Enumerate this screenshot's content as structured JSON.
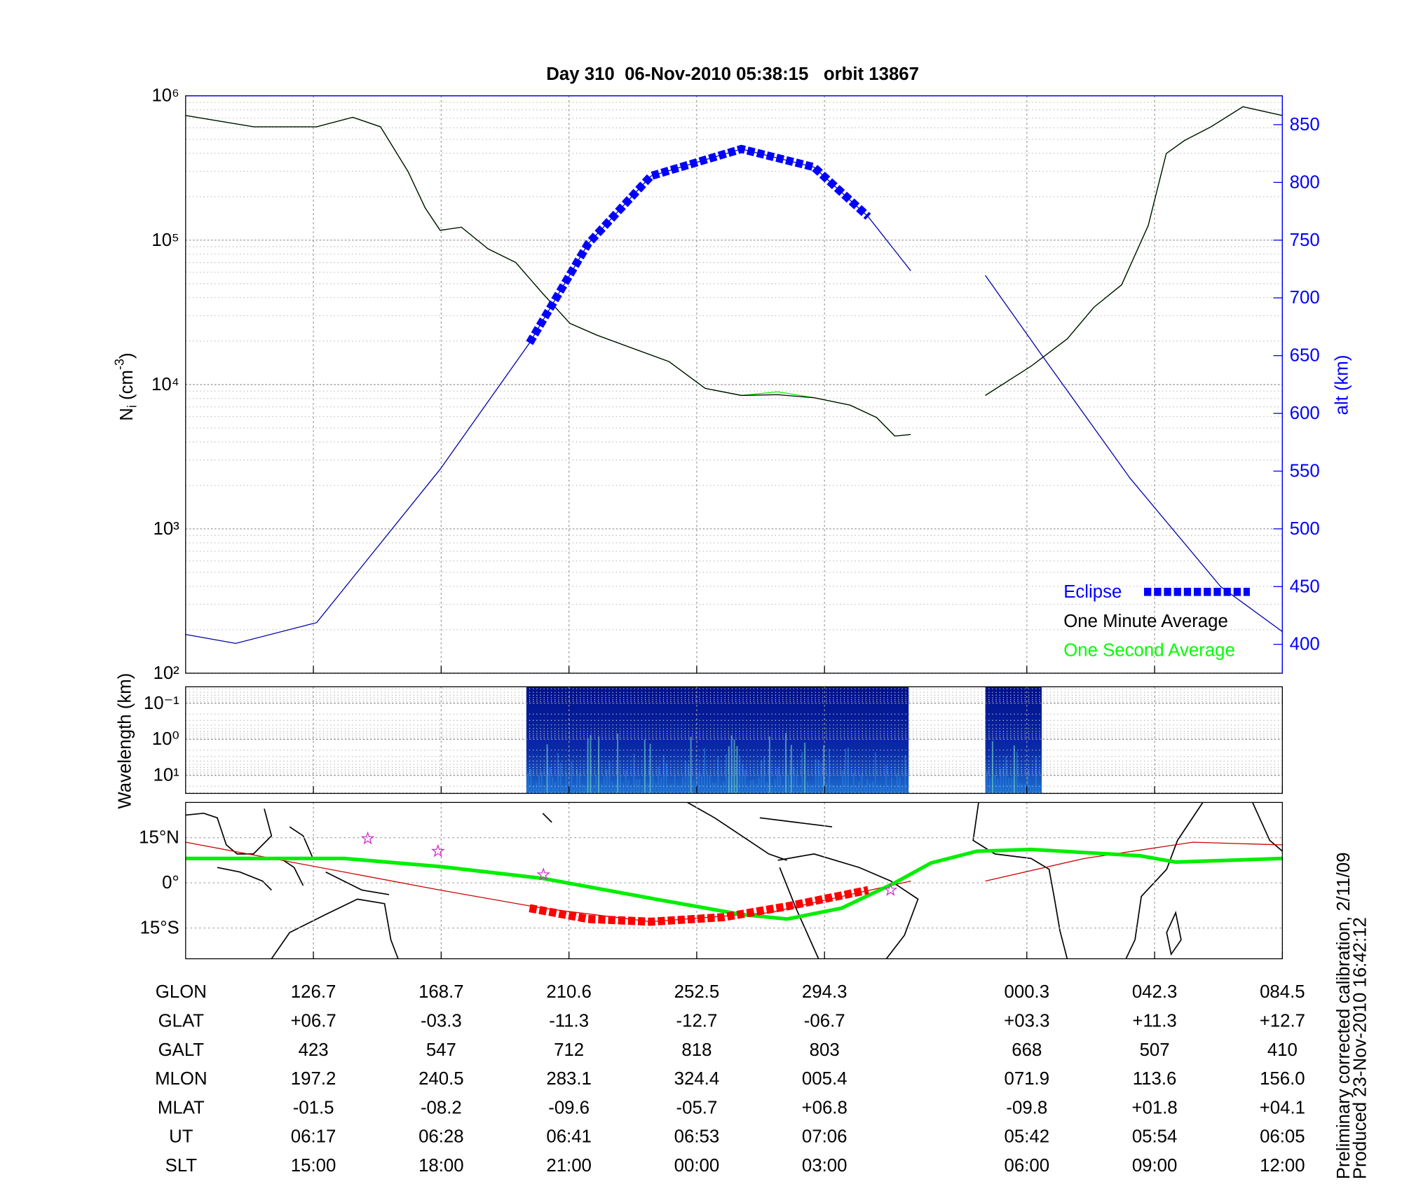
{
  "chart_data": [
    {
      "type": "line",
      "title": "Day 310  06-Nov-2010 05:38:15   orbit 13867",
      "ylabel_parts": [
        "N",
        "i",
        " (cm",
        "-3",
        ")"
      ],
      "y2label": "alt (km)",
      "xlim": [
        0,
        103
      ],
      "xticks": [
        12,
        24,
        36,
        48,
        60,
        79,
        91,
        103
      ],
      "ylim": [
        100,
        1000000
      ],
      "yscale": "log",
      "yticks": [
        {
          "value": 100,
          "label": "10²"
        },
        {
          "value": 1000,
          "label": "10³"
        },
        {
          "value": 10000,
          "label": "10⁴"
        },
        {
          "value": 100000,
          "label": "10⁵"
        },
        {
          "value": 1000000,
          "label": "10⁶"
        }
      ],
      "y2lim": [
        375,
        875
      ],
      "y2ticks": [
        400,
        450,
        500,
        550,
        600,
        650,
        700,
        750,
        800,
        850
      ],
      "grid": true,
      "legend": "lower right",
      "series": [
        {
          "name": "Eclipse",
          "color": "#0000ff",
          "axis": "y2",
          "style": "dashed-thick",
          "x": [
            32.3,
            37.8,
            43.7,
            52.2,
            59.0,
            64.1
          ],
          "values": [
            661,
            746.9,
            805.5,
            828.9,
            813.3,
            770.3
          ]
        },
        {
          "name": "One Minute Average",
          "color": "#000000",
          "x": [
            0,
            6.4,
            12.3,
            15.7,
            18.3,
            20.9,
            22.5,
            23.9,
            25.9,
            28.4,
            31.0,
            33.5,
            36.1,
            38.6,
            42.0,
            45.4,
            48.8,
            52.2,
            55.6,
            59.0,
            62.4,
            64.9,
            66.6,
            68.1,
            null,
            75.1,
            79.4,
            82.8,
            85.3,
            87.9,
            90.4,
            92.1,
            93.8,
            96.3,
            99.3,
            103
          ],
          "values": [
            730000,
            610000,
            610000,
            710000,
            610000,
            298000,
            167000,
            117000,
            123000,
            87000,
            70000,
            43000,
            26500,
            22000,
            17800,
            14400,
            9400,
            8400,
            8500,
            8100,
            7200,
            5900,
            4400,
            4500,
            null,
            8400,
            13400,
            20700,
            34300,
            49000,
            126000,
            398000,
            490000,
            610000,
            840000,
            730000
          ]
        },
        {
          "name": "One Second Average",
          "color": "#00ff00",
          "x": [
            0,
            6.4,
            12.3,
            15.7,
            18.3,
            20.9,
            22.5,
            23.9,
            25.9,
            28.4,
            31.0,
            33.5,
            36.1,
            38.6,
            42.0,
            45.4,
            48.8,
            52.2,
            55.6,
            59.0,
            62.4,
            64.9,
            66.6,
            68.1,
            null,
            75.1,
            79.4,
            82.8,
            85.3,
            87.9,
            90.4,
            92.1,
            93.8,
            96.3,
            99.3,
            103
          ],
          "values": [
            730000,
            610000,
            610000,
            710000,
            610000,
            298000,
            167000,
            117000,
            123000,
            87000,
            70000,
            43000,
            26500,
            22000,
            17800,
            14400,
            9400,
            8400,
            8900,
            8100,
            7200,
            5900,
            4400,
            4500,
            null,
            8400,
            13400,
            20700,
            34300,
            49000,
            126000,
            398000,
            490000,
            610000,
            840000,
            730000
          ]
        },
        {
          "color": "#0000aa",
          "axis": "y2",
          "x": [
            0,
            4.7,
            12.3,
            23.9,
            32.3,
            37.8,
            43.7,
            52.2,
            59.0,
            64.1,
            68.1,
            null,
            75.1,
            80.2,
            88.7,
            97.2,
            103
          ],
          "values": [
            408.6,
            400.8,
            418.8,
            551.6,
            661,
            746.9,
            805.5,
            828.9,
            813.3,
            770.3,
            723.4,
            null,
            719.5,
            653,
            543.8,
            450,
            411
          ]
        }
      ]
    },
    {
      "type": "heatmap",
      "ylabel": "Wavelength (km)",
      "xlim": [
        0,
        103
      ],
      "xticks": [
        12,
        24,
        36,
        48,
        60,
        79,
        91,
        103
      ],
      "ylim": [
        0.035,
        31.6
      ],
      "yscale": "log",
      "y_reversed": true,
      "yticks": [
        {
          "value": 0.1,
          "label": "10⁻¹"
        },
        {
          "value": 1,
          "label": "10⁰"
        },
        {
          "value": 10,
          "label": "10¹"
        }
      ],
      "blocks": [
        [
          32.0,
          67.9
        ],
        [
          75.1,
          80.4
        ]
      ]
    },
    {
      "type": "line",
      "xlim": [
        0,
        103
      ],
      "xticks": [
        12,
        24,
        36,
        48,
        60,
        79,
        91,
        103
      ],
      "ylim": [
        -25.2,
        26.7
      ],
      "yticks": [
        {
          "value": 15,
          "label": "15°N"
        },
        {
          "value": 0,
          "label": "0°"
        },
        {
          "value": -15,
          "label": "15°S"
        }
      ],
      "series": [
        {
          "color": "#cc0000",
          "x": [
            0,
            23.9,
            33.5,
            43.7,
            54.8,
            68.1,
            null,
            75.1,
            84.4,
            94.6,
            103
          ],
          "values": [
            13.5,
            -2.4,
            -8.4,
            -12.9,
            -9.9,
            0.6,
            null,
            0.6,
            8.1,
            13.5,
            12.6
          ]
        },
        {
          "color": "#00ee00",
          "style": "thick",
          "x": [
            0,
            14.9,
            23.9,
            33.5,
            44.6,
            52.2,
            56.5,
            61.6,
            66.6,
            70.0,
            74.3,
            79.4,
            89.6,
            93.0,
            103
          ],
          "values": [
            8.1,
            8.1,
            5.4,
            1.5,
            -5.7,
            -10.5,
            -12,
            -8.4,
            0,
            6.6,
            10.5,
            11.1,
            9,
            6.9,
            8.1
          ]
        },
        {
          "color": "#ff0000",
          "style": "dashed-thick",
          "x": [
            32.3,
            37.8,
            43.7,
            50.5,
            56.5,
            64.1
          ],
          "values": [
            -8.4,
            -12,
            -12.9,
            -11.4,
            -7.8,
            -2.4
          ]
        }
      ],
      "stars": {
        "color": "#cc33cc",
        "x": [
          17.1,
          23.7,
          33.6,
          66.2
        ],
        "values": [
          14.7,
          10.5,
          2.7,
          -2.4
        ]
      }
    }
  ],
  "table": {
    "row_labels": [
      "GLON",
      "GLAT",
      "GALT",
      "MLON",
      "MLAT",
      "UT",
      "SLT"
    ],
    "rows": [
      [
        "126.7",
        "168.7",
        "210.6",
        "252.5",
        "294.3",
        "000.3",
        "042.3",
        "084.5"
      ],
      [
        "+06.7",
        "-03.3",
        "-11.3",
        "-12.7",
        "-06.7",
        "+03.3",
        "+11.3",
        "+12.7"
      ],
      [
        "423",
        "547",
        "712",
        "818",
        "803",
        "668",
        "507",
        "410"
      ],
      [
        "197.2",
        "240.5",
        "283.1",
        "324.4",
        "005.4",
        "071.9",
        "113.6",
        "156.0"
      ],
      [
        "-01.5",
        "-08.2",
        "-09.6",
        "-05.7",
        "+06.8",
        "-09.8",
        "+01.8",
        "+04.1"
      ],
      [
        "06:17",
        "06:28",
        "06:41",
        "06:53",
        "07:06",
        "05:42",
        "05:54",
        "06:05"
      ],
      [
        "15:00",
        "18:00",
        "21:00",
        "00:00",
        "03:00",
        "06:00",
        "09:00",
        "12:00"
      ]
    ]
  },
  "footnotes": [
    "Preliminary corrected calibration, 2/11/09",
    "Produced 23-Nov-2010 16:42:12"
  ]
}
